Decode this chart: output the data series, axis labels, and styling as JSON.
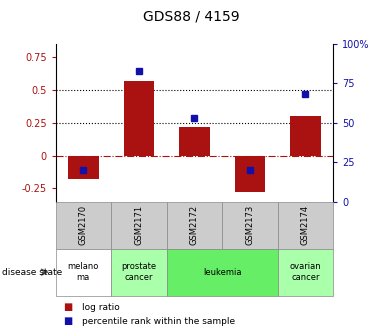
{
  "title": "GDS88 / 4159",
  "samples": [
    "GSM2170",
    "GSM2171",
    "GSM2172",
    "GSM2173",
    "GSM2174"
  ],
  "log_ratio": [
    -0.18,
    0.57,
    0.22,
    -0.28,
    0.3
  ],
  "percentile_rank": [
    20,
    83,
    53,
    20,
    68
  ],
  "bar_color": "#aa1111",
  "dot_color": "#1111aa",
  "ylim_left": [
    -0.35,
    0.85
  ],
  "ylim_right": [
    0,
    100
  ],
  "yticks_left": [
    -0.25,
    0,
    0.25,
    0.5,
    0.75
  ],
  "ytick_labels_left": [
    "-0.25",
    "0",
    "0.25",
    "0.5",
    "0.75"
  ],
  "yticks_right": [
    0,
    25,
    50,
    75,
    100
  ],
  "ytick_labels_right": [
    "0",
    "25",
    "50",
    "75",
    "100%"
  ],
  "dotted_lines": [
    0.25,
    0.5
  ],
  "disease_groups": [
    {
      "indices": [
        0
      ],
      "label": "melano\nma",
      "color": "#ffffff"
    },
    {
      "indices": [
        1
      ],
      "label": "prostate\ncancer",
      "color": "#aaffaa"
    },
    {
      "indices": [
        2,
        3
      ],
      "label": "leukemia",
      "color": "#66ee66"
    },
    {
      "indices": [
        4
      ],
      "label": "ovarian\ncancer",
      "color": "#aaffaa"
    }
  ],
  "sample_bg_color": "#cccccc",
  "background_color": "#ffffff"
}
